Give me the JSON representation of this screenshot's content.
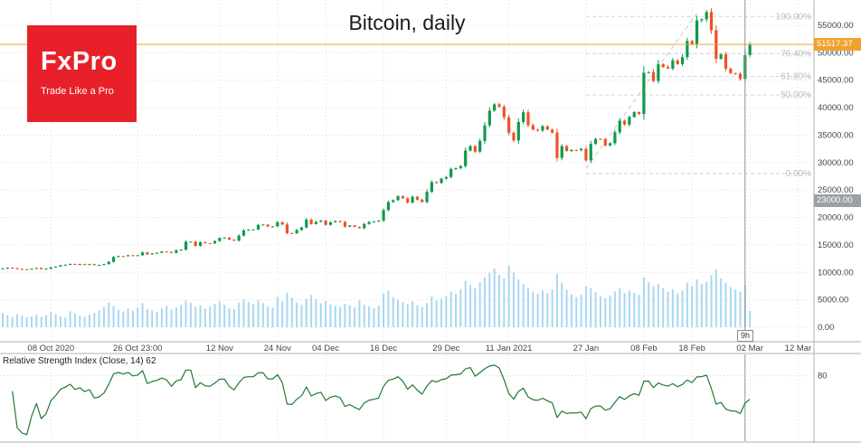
{
  "logo": {
    "brand": "FxPro",
    "tagline": "Trade Like a Pro"
  },
  "price_axis": {
    "current_price_tag": "51517.37",
    "current_price_value": 51517.37,
    "secondary_tag": "23000.00",
    "secondary_tag_price": 23000,
    "ticks": [
      {
        "label": "55000.00",
        "value": 55000
      },
      {
        "label": "50000.00",
        "value": 50000
      },
      {
        "label": "45000.00",
        "value": 45000
      },
      {
        "label": "40000.00",
        "value": 40000
      },
      {
        "label": "35000.00",
        "value": 35000
      },
      {
        "label": "30000.00",
        "value": 30000
      },
      {
        "label": "25000.00",
        "value": 25000
      },
      {
        "label": "20000.00",
        "value": 20000
      },
      {
        "label": "15000.00",
        "value": 15000
      },
      {
        "label": "10000.00",
        "value": 10000
      },
      {
        "label": "5000.00",
        "value": 5000
      },
      {
        "label": "0.00",
        "value": 0
      }
    ]
  },
  "time_axis": {
    "countdown": "9h",
    "ticks": [
      {
        "label": "08 Oct 2020",
        "day": 10
      },
      {
        "label": "26 Oct 23:00",
        "day": 28
      },
      {
        "label": "12 Nov",
        "day": 45
      },
      {
        "label": "24 Nov",
        "day": 57
      },
      {
        "label": "04 Dec",
        "day": 67
      },
      {
        "label": "16 Dec",
        "day": 79
      },
      {
        "label": "29 Dec",
        "day": 92
      },
      {
        "label": "11 Jan 2021",
        "day": 105
      },
      {
        "label": "27 Jan",
        "day": 121
      },
      {
        "label": "08 Feb",
        "day": 133
      },
      {
        "label": "18 Feb",
        "day": 143
      },
      {
        "label": "02 Mar",
        "day": 155
      },
      {
        "label": "12 Mar",
        "day": 165
      }
    ]
  },
  "rsi": {
    "label": "Relative Strength Index (Close, 14) 62",
    "period": 14,
    "last_value": 62,
    "level": 80,
    "level_label": "80"
  },
  "chart_data": {
    "type": "candlestick",
    "title": "Bitcoin, daily",
    "interval": "daily",
    "start_date": "2020-09-28",
    "end_label": "02 Mar 2021",
    "last_price": 51517.37,
    "ylim": [
      0,
      57800
    ],
    "current_day_index": 154,
    "closes": [
      10720,
      10840,
      10780,
      10620,
      10570,
      10550,
      10670,
      10800,
      10600,
      10670,
      10920,
      11060,
      11290,
      11380,
      11530,
      11420,
      11500,
      11420,
      11500,
      11320,
      11360,
      11500,
      11920,
      12800,
      12970,
      12930,
      13120,
      13030,
      13120,
      13650,
      13270,
      13450,
      13560,
      13800,
      13740,
      13550,
      14020,
      14140,
      15590,
      15590,
      14820,
      15480,
      15320,
      15290,
      15700,
      16280,
      16320,
      15960,
      15780,
      16700,
      17650,
      17790,
      17810,
      18650,
      18690,
      18370,
      18370,
      19150,
      18730,
      17150,
      17110,
      17720,
      18180,
      19620,
      18800,
      19200,
      19440,
      18650,
      19150,
      19350,
      19190,
      18320,
      18550,
      18270,
      18040,
      18810,
      19170,
      19270,
      19430,
      21340,
      22810,
      23130,
      23870,
      23480,
      22720,
      23780,
      23240,
      22800,
      24670,
      26440,
      26280,
      27080,
      27360,
      28840,
      28990,
      29370,
      32180,
      33000,
      31990,
      33950,
      36770,
      39450,
      40600,
      40170,
      38240,
      35410,
      34050,
      37380,
      39150,
      36800,
      36010,
      35840,
      36630,
      36000,
      35470,
      30850,
      33000,
      32100,
      32290,
      32250,
      32500,
      30410,
      33400,
      34300,
      34280,
      33110,
      33530,
      35510,
      37620,
      36940,
      38290,
      39190,
      38840,
      46370,
      46480,
      44850,
      47910,
      47380,
      47110,
      48620,
      47930,
      49200,
      52140,
      51570,
      55890,
      56100,
      57410,
      54100,
      48900,
      49700,
      47090,
      46300,
      46190,
      45230,
      49600,
      51517
    ],
    "volumes_k": [
      2.6,
      2.2,
      1.9,
      2.4,
      2.1,
      1.8,
      2.0,
      2.3,
      1.9,
      2.2,
      2.8,
      2.4,
      2.0,
      1.8,
      2.9,
      2.5,
      2.1,
      1.9,
      2.3,
      2.6,
      3.1,
      3.7,
      4.5,
      3.9,
      3.2,
      2.9,
      3.4,
      3.0,
      3.6,
      4.4,
      3.3,
      3.1,
      2.8,
      3.5,
      3.9,
      3.2,
      3.6,
      4.1,
      4.9,
      4.5,
      3.7,
      4.0,
      3.4,
      3.8,
      4.3,
      4.7,
      4.1,
      3.5,
      3.3,
      4.5,
      5.1,
      4.6,
      4.2,
      4.9,
      4.4,
      3.8,
      3.6,
      5.5,
      4.7,
      6.3,
      5.4,
      4.5,
      4.1,
      5.2,
      5.9,
      5.1,
      4.4,
      4.8,
      4.2,
      3.9,
      3.7,
      4.3,
      4.0,
      3.6,
      4.9,
      4.1,
      3.8,
      3.5,
      3.9,
      6.1,
      6.7,
      5.5,
      5.0,
      4.6,
      4.2,
      4.7,
      4.0,
      3.7,
      4.4,
      5.6,
      4.9,
      5.2,
      5.8,
      6.5,
      6.1,
      6.9,
      8.5,
      7.7,
      7.1,
      8.2,
      9.1,
      9.9,
      10.7,
      9.5,
      8.9,
      11.2,
      10.0,
      8.7,
      7.9,
      7.2,
      6.5,
      6.1,
      6.7,
      6.2,
      6.9,
      9.7,
      8.1,
      6.8,
      6.0,
      5.5,
      5.9,
      7.5,
      7.1,
      6.4,
      5.7,
      5.3,
      5.8,
      6.5,
      7.1,
      6.2,
      6.7,
      6.3,
      5.9,
      9.1,
      8.2,
      7.5,
      7.9,
      7.1,
      6.5,
      6.9,
      6.1,
      6.7,
      8.1,
      7.5,
      8.7,
      7.9,
      8.3,
      9.5,
      10.5,
      8.9,
      8.1,
      7.3,
      6.9,
      6.5,
      7.7,
      3.0
    ],
    "fib": {
      "start_day": 121,
      "end_day": 144,
      "anchor_low": 28900,
      "anchor_high": 57200,
      "price_low": 28000,
      "price_high": 56600,
      "levels": [
        {
          "label": "100.00%",
          "pct": 100
        },
        {
          "label": "76.40%",
          "pct": 76.4
        },
        {
          "label": "61.80%",
          "pct": 61.8
        },
        {
          "label": "50.00%",
          "pct": 50
        },
        {
          "label": "0.00%",
          "pct": 0
        }
      ]
    }
  },
  "colors": {
    "bull": "#0e9a4c",
    "bear": "#ef5226",
    "volume": "#a9d7f2",
    "price_line": "#f0a22d",
    "gray_tag_bg": "#9aa0a6",
    "rsi_line": "#1f7a33",
    "fib": "#c9c9c9",
    "fib_text": "#bdbdbd",
    "brand_red": "#e8202a",
    "grid": "#dcdcdc",
    "axis_text": "#454545",
    "frame": "#b0b0b0",
    "current_bar_line": "#8f8f8f"
  }
}
